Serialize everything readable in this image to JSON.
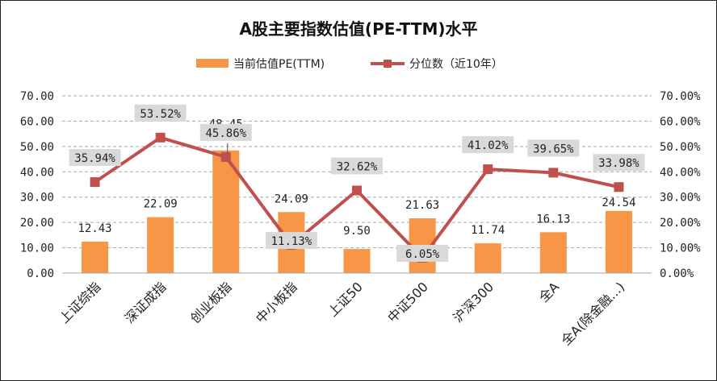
{
  "chart_data": {
    "type": "bar+line",
    "title": "A股主要指数估值(PE-TTM)水平",
    "categories": [
      "上证综指",
      "深证成指",
      "创业板指",
      "中小板指",
      "上证50",
      "中证500",
      "沪深300",
      "全A",
      "全A(除金融...)"
    ],
    "series": [
      {
        "name": "当前估值PE(TTM)",
        "type": "bar",
        "axis": "left",
        "color": "#F79646",
        "values": [
          12.43,
          22.09,
          48.45,
          24.09,
          9.5,
          21.63,
          11.74,
          16.13,
          24.54
        ],
        "labels": [
          "12.43",
          "22.09",
          "48.45",
          "24.09",
          "9.50",
          "21.63",
          "11.74",
          "16.13",
          "24.54"
        ]
      },
      {
        "name": "分位数（近10年）",
        "type": "line",
        "axis": "right",
        "color": "#C0504D",
        "values": [
          35.94,
          53.52,
          45.86,
          11.13,
          32.62,
          6.05,
          41.02,
          39.65,
          33.98
        ],
        "labels": [
          "35.94%",
          "53.52%",
          "45.86%",
          "11.13%",
          "32.62%",
          "6.05%",
          "41.02%",
          "39.65%",
          "33.98%"
        ]
      }
    ],
    "y_left": {
      "min": 0,
      "max": 70,
      "ticks": [
        "0.00",
        "10.00",
        "20.00",
        "30.00",
        "40.00",
        "50.00",
        "60.00",
        "70.00"
      ]
    },
    "y_right": {
      "min": 0,
      "max": 70,
      "ticks": [
        "0.00%",
        "10.00%",
        "20.00%",
        "30.00%",
        "40.00%",
        "50.00%",
        "60.00%",
        "70.00%"
      ]
    },
    "grid": true,
    "legend_position": "top"
  }
}
